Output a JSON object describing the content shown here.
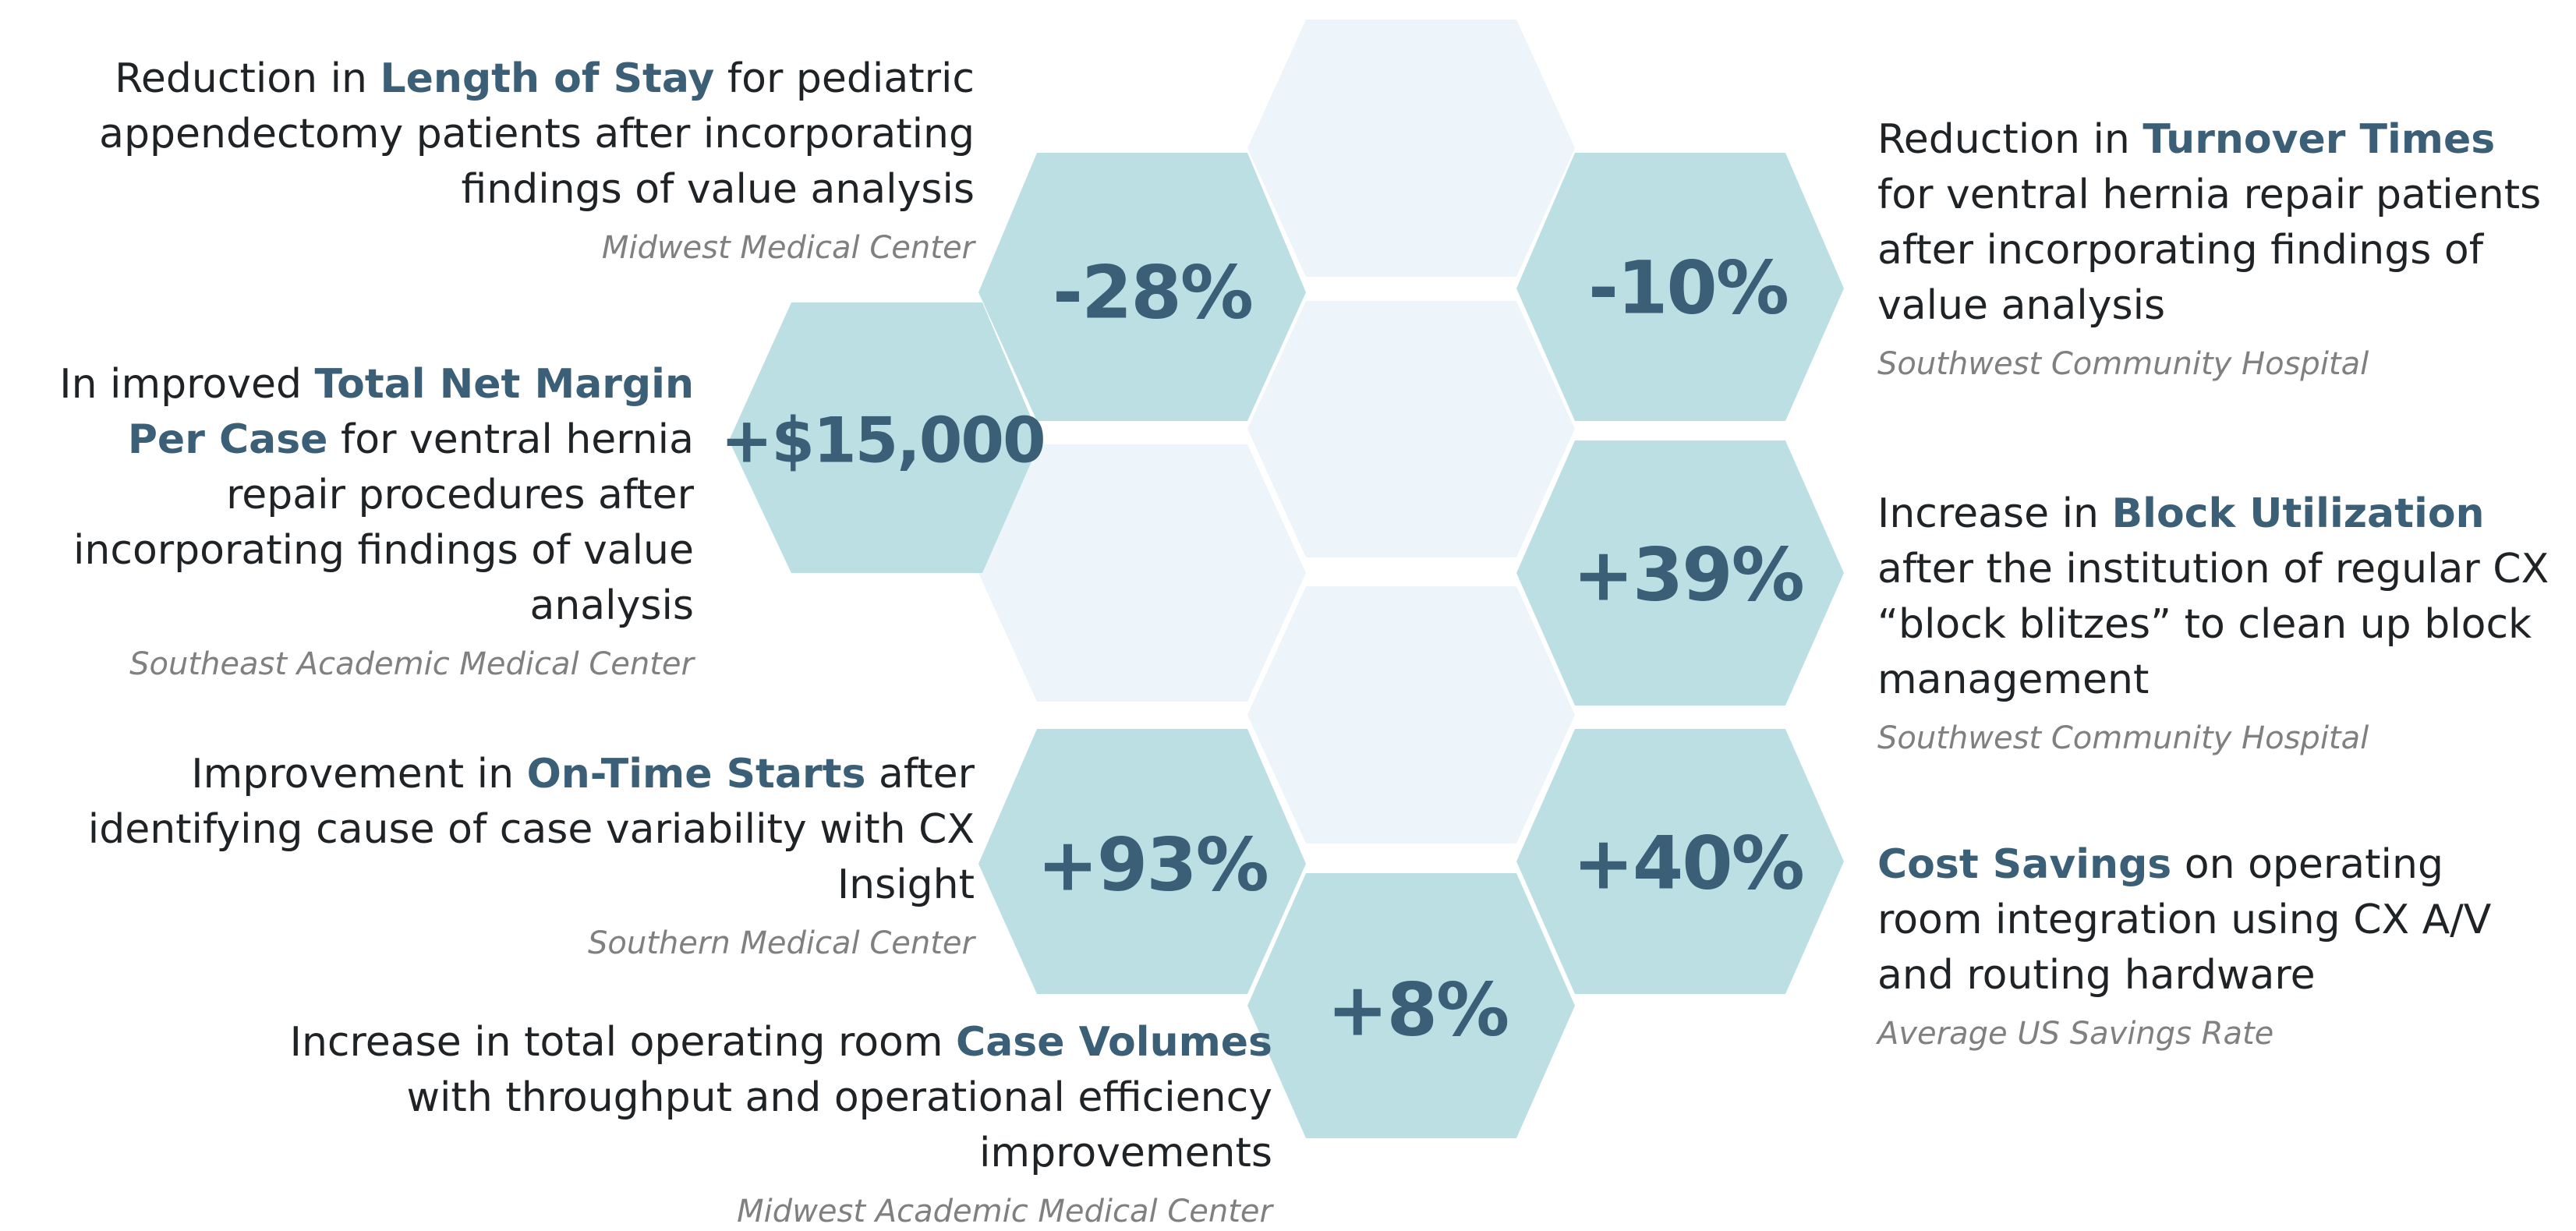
{
  "colors": {
    "accent_text": "#3a5f76",
    "hex_filled": "#bcdfe3",
    "hex_pale": "#edf5fb",
    "body_text": "#1f2326",
    "source_text": "#808080"
  },
  "stats": [
    {
      "id": "length-of-stay",
      "value": "-28%",
      "pre": "Reduction in ",
      "highlight": "Length of Stay",
      "post": " for pediatric appendectomy patients after incorporating findings of value analysis",
      "source": "Midwest Medical Center"
    },
    {
      "id": "turnover-times",
      "value": "-10%",
      "pre": "Reduction in ",
      "highlight": "Turnover Times",
      "post": " for ventral hernia repair patients after incorporating findings of value analysis",
      "source": "Southwest Community Hospital"
    },
    {
      "id": "net-margin",
      "value": "+$15,000",
      "pre": "In improved ",
      "highlight": "Total Net Margin Per Case",
      "post": " for ventral hernia repair procedures after incorporating findings of value analysis",
      "source": "Southeast Academic Medical Center"
    },
    {
      "id": "block-utilization",
      "value": "+39%",
      "pre": "Increase in ",
      "highlight": "Block Utilization",
      "post": " after the institution of regular CX “block blitzes” to clean up block management",
      "source": "Southwest Community Hospital"
    },
    {
      "id": "on-time-starts",
      "value": "+93%",
      "pre": "Improvement in ",
      "highlight": "On-Time Starts",
      "post": " after identifying cause of case variability with CX Insight",
      "source": "Southern Medical Center"
    },
    {
      "id": "cost-savings",
      "value": "+40%",
      "pre": "",
      "highlight": "Cost Savings",
      "post": " on operating room integration using CX A/V and routing hardware",
      "source": "Average US Savings Rate"
    },
    {
      "id": "case-volumes",
      "value": "+8%",
      "pre": "Increase in total operating room ",
      "highlight": "Case Volumes",
      "post": " with throughput and operational efficiency improvements",
      "source": "Midwest Academic Medical Center"
    }
  ]
}
